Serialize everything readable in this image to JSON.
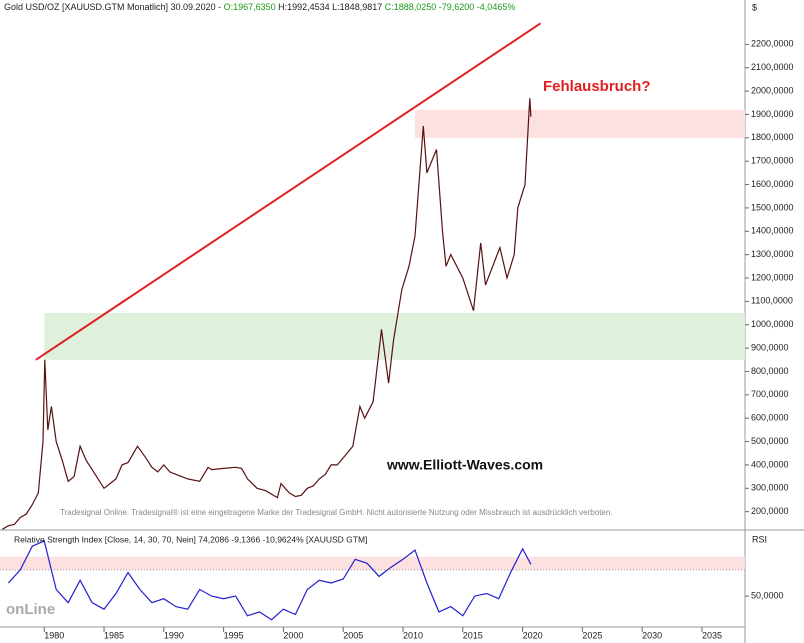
{
  "header": {
    "parts": [
      {
        "text": "Gold USD/OZ [XAUUSD.GTM  Monatlich] 30.09.2020 - ",
        "color": "#222"
      },
      {
        "text": "O:1967,6350",
        "color": "#1a9a1a"
      },
      {
        "text": " H:1992,4534 L:1848,9817 ",
        "color": "#222"
      },
      {
        "text": "C:1888,0250 -79,6200 -4,0465%",
        "color": "#1a9a1a"
      }
    ]
  },
  "chart_data": [
    {
      "type": "line",
      "currency": "$",
      "annotation": "Fehlausbruch?",
      "watermark": "www.Elliott-Waves.com",
      "copyright": "Tradesignal Online. Tradesignal® ist eine eingetragene Marke der Tradesignal GmbH. Nicht autorisierte Nutzung oder Missbrauch ist ausdrücklich verboten.",
      "x": [
        1976.5,
        1977,
        1977.5,
        1978,
        1978.5,
        1979,
        1979.5,
        1979.9,
        1980.05,
        1980.3,
        1980.6,
        1981,
        1981.5,
        1982,
        1982.5,
        1983,
        1983.5,
        1984,
        1984.5,
        1985,
        1985.5,
        1986,
        1986.5,
        1987,
        1987.8,
        1988.5,
        1989,
        1989.5,
        1990,
        1990.5,
        1991,
        1992,
        1993,
        1993.7,
        1994,
        1995,
        1996,
        1996.5,
        1997,
        1997.8,
        1998.5,
        1999.5,
        1999.8,
        2000.5,
        2001,
        2001.5,
        2002,
        2002.5,
        2003,
        2003.5,
        2004,
        2004.5,
        2005,
        2005.8,
        2006.4,
        2006.8,
        2007.5,
        2008.2,
        2008.8,
        2009.2,
        2009.9,
        2010.5,
        2011,
        2011.7,
        2012,
        2012.8,
        2013.3,
        2013.6,
        2014,
        2014.5,
        2015,
        2015.9,
        2016.5,
        2016.9,
        2017.5,
        2018.1,
        2018.7,
        2019.3,
        2019.6,
        2020.2,
        2020.6,
        2020.7
      ],
      "series": [
        {
          "name": "Gold USD/OZ",
          "color": "#5a1010",
          "values": [
            125,
            140,
            145,
            175,
            190,
            230,
            280,
            500,
            850,
            550,
            650,
            500,
            420,
            330,
            350,
            480,
            420,
            380,
            340,
            300,
            320,
            340,
            400,
            410,
            480,
            430,
            390,
            370,
            400,
            370,
            360,
            340,
            330,
            390,
            380,
            385,
            390,
            385,
            340,
            300,
            290,
            260,
            320,
            280,
            265,
            270,
            300,
            310,
            340,
            360,
            400,
            400,
            430,
            480,
            650,
            600,
            670,
            980,
            750,
            930,
            1150,
            1250,
            1380,
            1850,
            1650,
            1750,
            1400,
            1250,
            1300,
            1250,
            1200,
            1060,
            1350,
            1170,
            1250,
            1330,
            1200,
            1300,
            1500,
            1600,
            1970,
            1890
          ]
        }
      ],
      "trendline": {
        "color": "#e02020",
        "x": [
          1979.3,
          2021.5
        ],
        "values": [
          850,
          2290
        ]
      },
      "bands": [
        {
          "color": "#dff0dc",
          "xlim": [
            1980.0,
            2038.6
          ],
          "ylim": [
            850,
            1050
          ]
        },
        {
          "color": "#fde0e0",
          "xlim": [
            2011.0,
            2038.6
          ],
          "ylim": [
            1800,
            1920
          ]
        }
      ],
      "xlim": [
        1976.3,
        2038.6
      ],
      "ylim": [
        130,
        2330
      ],
      "yticks": [
        {
          "value": 200,
          "label": "200,0000"
        },
        {
          "value": 300,
          "label": "300,0000"
        },
        {
          "value": 400,
          "label": "400,0000"
        },
        {
          "value": 500,
          "label": "500,0000"
        },
        {
          "value": 600,
          "label": "600,0000"
        },
        {
          "value": 700,
          "label": "700,0000"
        },
        {
          "value": 800,
          "label": "800,0000"
        },
        {
          "value": 900,
          "label": "900,0000"
        },
        {
          "value": 1000,
          "label": "1000,0000"
        },
        {
          "value": 1100,
          "label": "1100,0000"
        },
        {
          "value": 1200,
          "label": "1200,0000"
        },
        {
          "value": 1300,
          "label": "1300,0000"
        },
        {
          "value": 1400,
          "label": "1400,0000"
        },
        {
          "value": 1500,
          "label": "1500,0000"
        },
        {
          "value": 1600,
          "label": "1600,0000"
        },
        {
          "value": 1700,
          "label": "1700,0000"
        },
        {
          "value": 1800,
          "label": "1800,0000"
        },
        {
          "value": 1900,
          "label": "1900,0000"
        },
        {
          "value": 2000,
          "label": "2000,0000"
        },
        {
          "value": 2100,
          "label": "2100,0000"
        },
        {
          "value": 2200,
          "label": "2200,0000"
        }
      ],
      "xticks": [
        1980,
        1985,
        1990,
        1995,
        2000,
        2005,
        2010,
        2015,
        2020,
        2025,
        2030,
        2035
      ]
    },
    {
      "type": "line",
      "title": "Relative Strength Index [Close, 14, 30, 70, Nein] 74,2086 -9,1366 -10,9624% [XAUUSD GTM]",
      "axis_label": "RSI",
      "logo": "onLine",
      "x": [
        1977,
        1978,
        1979,
        1980,
        1981,
        1982,
        1983,
        1984,
        1985,
        1986,
        1987,
        1988,
        1989,
        1990,
        1991,
        1992,
        1993,
        1994,
        1995,
        1996,
        1997,
        1998,
        1999,
        2000,
        2001,
        2002,
        2003,
        2004,
        2005,
        2006,
        2007,
        2008,
        2009,
        2010,
        2011,
        2012,
        2013,
        2014,
        2015,
        2016,
        2017,
        2018,
        2019,
        2020,
        2020.7
      ],
      "series": [
        {
          "name": "RSI",
          "color": "#2020d0",
          "values": [
            60,
            70,
            88,
            92,
            55,
            45,
            62,
            45,
            40,
            52,
            68,
            55,
            45,
            48,
            42,
            40,
            55,
            50,
            48,
            50,
            35,
            38,
            32,
            40,
            36,
            55,
            62,
            60,
            63,
            78,
            75,
            65,
            72,
            78,
            85,
            60,
            38,
            42,
            35,
            50,
            52,
            48,
            68,
            86,
            74.2086
          ]
        }
      ],
      "bands": [
        {
          "color": "#fde0e0",
          "ylim": [
            70,
            80
          ]
        }
      ],
      "xlim": [
        1976.3,
        2038.6
      ],
      "ylim": [
        28,
        95
      ],
      "yticks": [
        {
          "value": 50,
          "label": "50,0000"
        }
      ]
    }
  ]
}
